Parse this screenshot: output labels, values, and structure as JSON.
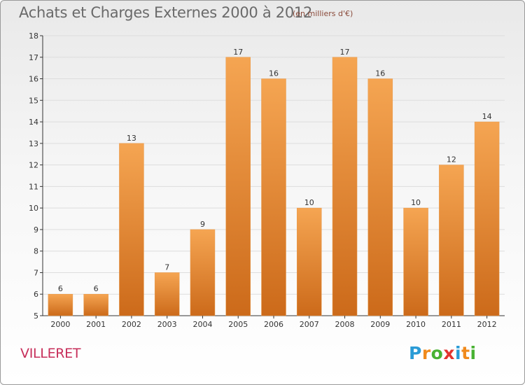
{
  "header": {
    "title": "Achats et Charges Externes 2000 à 2012",
    "unit": "(en milliers d'€)"
  },
  "location": "VILLERET",
  "logo": {
    "letters": [
      "P",
      "r",
      "o",
      "x",
      "i",
      "t",
      "i"
    ],
    "colors": [
      "#2a9bd6",
      "#f08a1c",
      "#49b233",
      "#e3342f",
      "#2a9bd6",
      "#f08a1c",
      "#49b233"
    ]
  },
  "colors": {
    "bar_top": "#f5a552",
    "bar_bottom": "#cc6a1a",
    "axis": "#333333",
    "grid": "#dddddd"
  },
  "chart_data": {
    "type": "bar",
    "title": "Achats et Charges Externes 2000 à 2012",
    "subtitle": "(en milliers d'€)",
    "categories": [
      "2000",
      "2001",
      "2002",
      "2003",
      "2004",
      "2005",
      "2006",
      "2007",
      "2008",
      "2009",
      "2010",
      "2011",
      "2012"
    ],
    "values": [
      6,
      6,
      13,
      7,
      9,
      17,
      16,
      10,
      17,
      16,
      10,
      12,
      14
    ],
    "ylim": [
      5,
      18
    ],
    "yticks": [
      "5",
      "6",
      "7",
      "8",
      "9",
      "10",
      "11",
      "12",
      "13",
      "14",
      "15",
      "16",
      "17",
      "18"
    ],
    "grid": true,
    "xlabel": "",
    "ylabel": ""
  }
}
